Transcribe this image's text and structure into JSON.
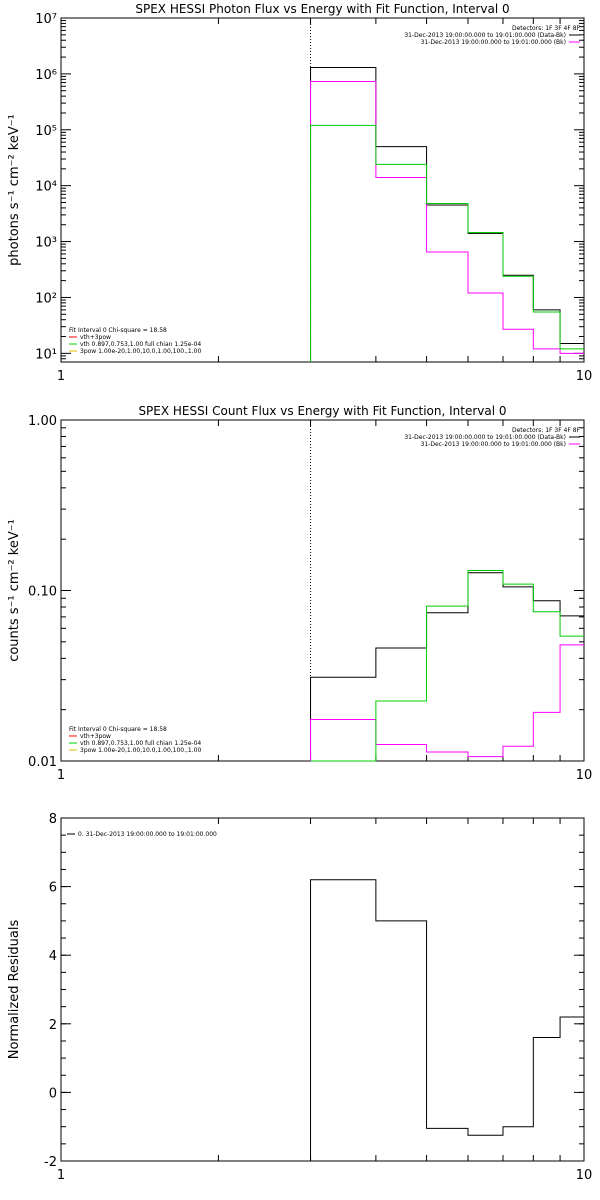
{
  "colors": {
    "data": "#000000",
    "background": "#ff00ff",
    "model": "#00cc00",
    "thermal": "#ff0000",
    "power": "#e0c000"
  },
  "chart_data": [
    {
      "type": "line",
      "title": "SPEX HESSI Photon Flux vs Energy with Fit Function, Interval 0",
      "ylabel": "photons s⁻¹ cm⁻² keV⁻¹",
      "xlabel": "",
      "xscale": "log",
      "yscale": "log",
      "xlim": [
        1,
        10
      ],
      "ylim": [
        7,
        10000000
      ],
      "xticks": [
        1,
        10
      ],
      "xtick_labels": [
        "1",
        "10"
      ],
      "yticks": [
        10,
        100,
        1000,
        10000,
        100000,
        1000000,
        10000000
      ],
      "ytick_labels": [
        "10¹",
        "10²",
        "10³",
        "10⁴",
        "10⁵",
        "10⁶",
        "10⁷"
      ],
      "vline": 3,
      "edges": [
        3,
        4,
        5,
        6,
        7,
        8,
        9,
        10
      ],
      "series": [
        {
          "values": [
            1300000,
            50000,
            4500,
            1400,
            250,
            60,
            15
          ],
          "color": "#000000"
        },
        {
          "values": [
            730000,
            14000,
            650,
            120,
            27,
            12,
            10
          ],
          "color": "#ff00ff"
        },
        {
          "values": [
            120000,
            24000,
            4800,
            1450,
            240,
            55,
            12
          ],
          "color": "#00cc00"
        }
      ],
      "legend_tr": {
        "header": "Detectors: 1F 3F 4F 8F",
        "items": [
          {
            "label": "31-Dec-2013 19:00:00.000 to 19:01:00.000 (Data-Bk)",
            "color": "#000000"
          },
          {
            "label": "31-Dec-2013 19:00:00.000 to 19:01:00.000 (Bk)",
            "color": "#ff00ff"
          }
        ]
      },
      "legend_bl": {
        "header": "Fit Interval 0   Chi-square = 18.58",
        "items": [
          {
            "label": "vth+3pow",
            "color": "#ff0000"
          },
          {
            "label": "vth 0.897,0.753,1.00  full chian 1.25e-04",
            "color": "#00cc00"
          },
          {
            "label": "3pow 1.00e-20,1.00,10.0,1.00,100.,1.00",
            "color": "#e0c000"
          }
        ]
      }
    },
    {
      "type": "line",
      "title": "SPEX HESSI Count Flux vs Energy with Fit Function, Interval 0",
      "ylabel": "counts s⁻¹ cm⁻² keV⁻¹",
      "xlabel": "",
      "xscale": "log",
      "yscale": "log",
      "xlim": [
        1,
        10
      ],
      "ylim": [
        0.01,
        1
      ],
      "xticks": [
        1,
        10
      ],
      "xtick_labels": [
        "1",
        "10"
      ],
      "yticks": [
        0.01,
        0.1,
        1
      ],
      "ytick_labels": [
        "0.01",
        "0.10",
        "1.00"
      ],
      "vline": 3,
      "edges": [
        3,
        4,
        5,
        6,
        7,
        8,
        9,
        10
      ],
      "series": [
        {
          "values": [
            0.031,
            0.046,
            0.074,
            0.127,
            0.105,
            0.087,
            0.071
          ],
          "color": "#000000"
        },
        {
          "values": [
            0.0175,
            0.0125,
            0.0113,
            0.0106,
            0.0122,
            0.0193,
            0.048
          ],
          "color": "#ff00ff"
        },
        {
          "values": [
            0.0093,
            0.0225,
            0.081,
            0.131,
            0.109,
            0.075,
            0.054
          ],
          "color": "#00cc00"
        }
      ],
      "legend_tr": {
        "header": "Detectors: 1F 3F 4F 8F",
        "items": [
          {
            "label": "31-Dec-2013 19:00:00.000 to 19:01:00.000 (Data-Bk)",
            "color": "#000000"
          },
          {
            "label": "31-Dec-2013 19:00:00.000 to 19:01:00.000 (Bk)",
            "color": "#ff00ff"
          }
        ]
      },
      "legend_bl": {
        "header": "Fit Interval 0   Chi-square = 18.58",
        "items": [
          {
            "label": "vth+3pow",
            "color": "#ff0000"
          },
          {
            "label": "vth 0.897,0.753,1.00  full chian 1.25e-04",
            "color": "#00cc00"
          },
          {
            "label": "3pow 1.00e-20,1.00,10.0,1.00,100.,1.00",
            "color": "#e0c000"
          }
        ]
      }
    },
    {
      "type": "line",
      "title": "",
      "ylabel": "Normalized Residuals",
      "xlabel": "",
      "xscale": "log",
      "yscale": "linear",
      "xlim": [
        1,
        10
      ],
      "ylim": [
        -2,
        8
      ],
      "xticks": [
        1,
        10
      ],
      "xtick_labels": [
        "1",
        "10"
      ],
      "yticks": [
        -2,
        0,
        2,
        4,
        6,
        8
      ],
      "ytick_labels": [
        "-2",
        "0",
        "2",
        "4",
        "6",
        "8"
      ],
      "edges": [
        3,
        4,
        5,
        6,
        7,
        8,
        9,
        10
      ],
      "series": [
        {
          "values": [
            6.2,
            5.0,
            -1.05,
            -1.25,
            -1.0,
            1.6,
            2.2
          ],
          "color": "#000000"
        }
      ],
      "legend_tl": {
        "items": [
          {
            "label": "0. 31-Dec-2013 19:00:00.000 to 19:01:00.000",
            "color": "#000000"
          }
        ]
      }
    }
  ]
}
